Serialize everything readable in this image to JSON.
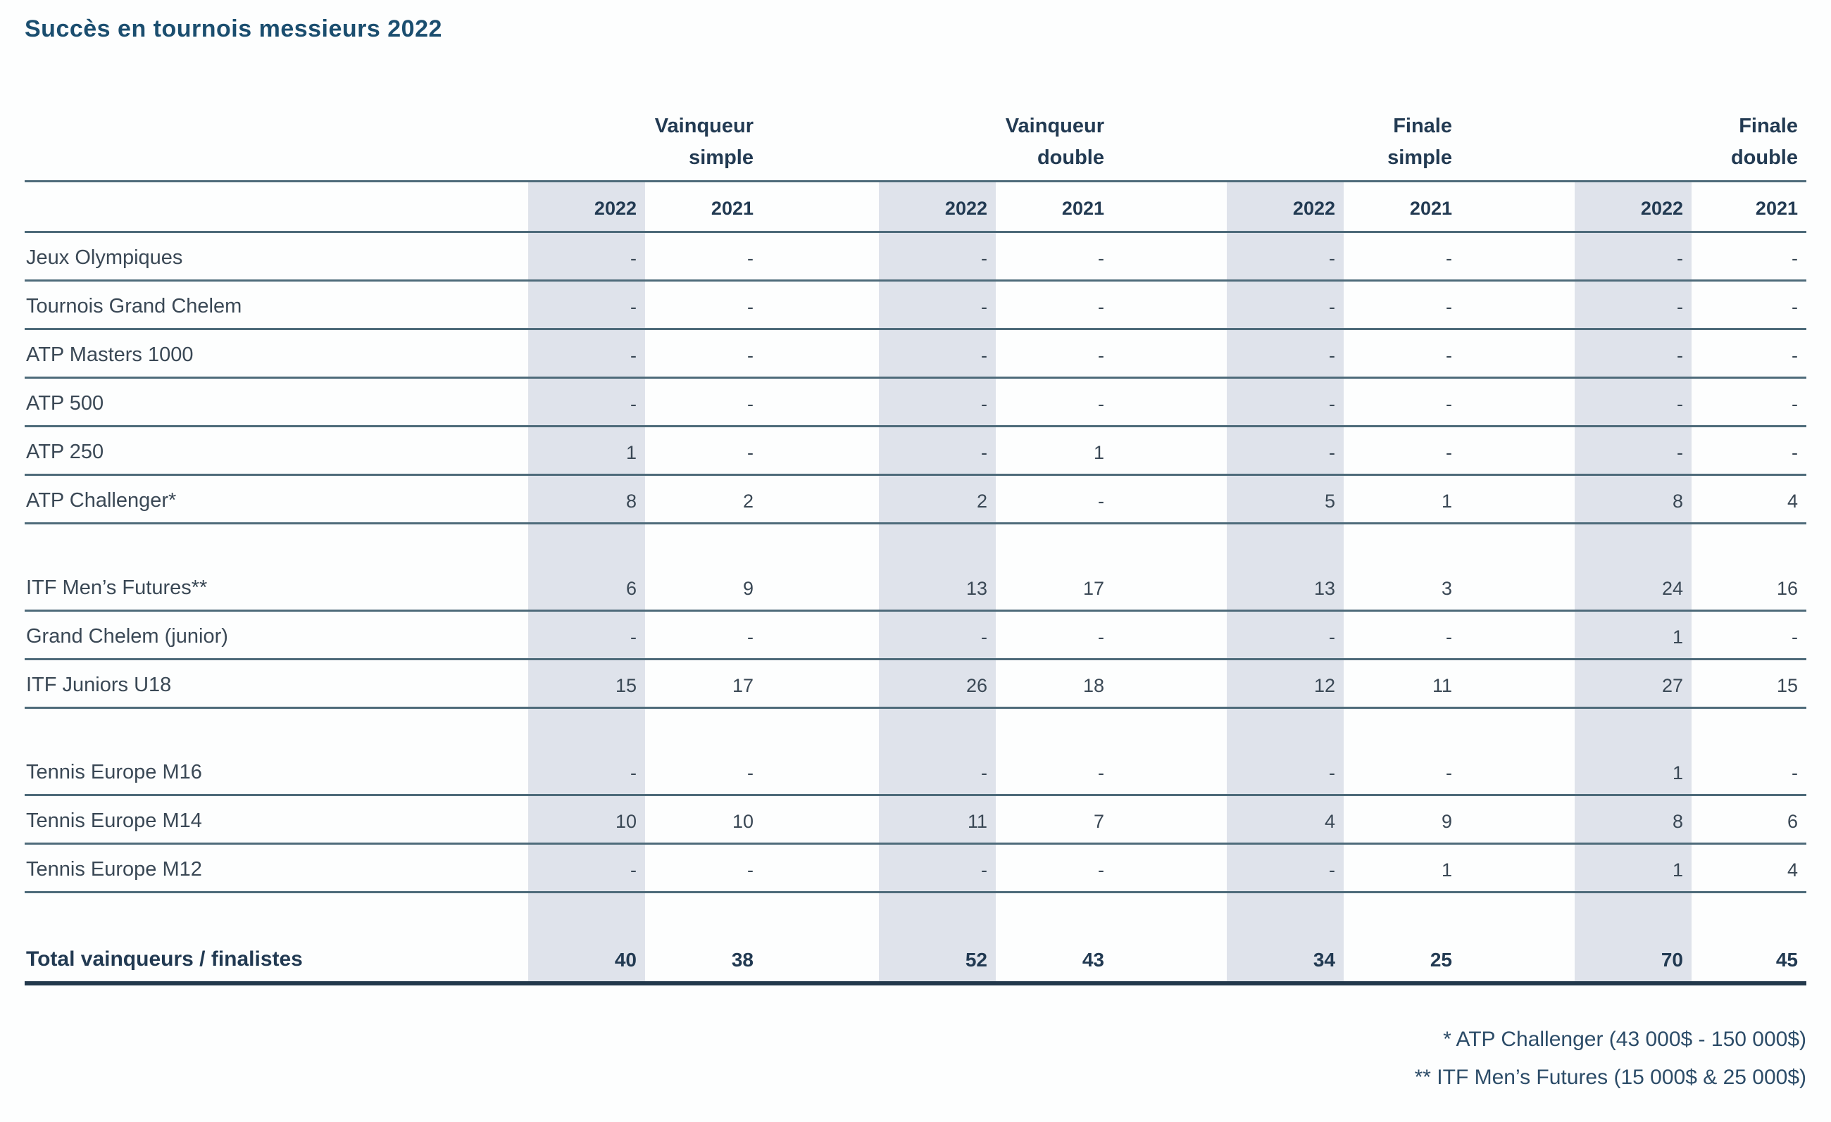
{
  "title": "Succès en tournois messieurs 2022",
  "table": {
    "groups": [
      {
        "label": "Vainqueur\nsimple"
      },
      {
        "label": "Vainqueur\ndouble"
      },
      {
        "label": "Finale\nsimple"
      },
      {
        "label": "Finale\ndouble"
      }
    ],
    "year_headers": [
      "2022",
      "2021",
      "2022",
      "2021",
      "2022",
      "2021",
      "2022",
      "2021"
    ],
    "rows": [
      {
        "type": "data",
        "label": "Jeux Olympiques",
        "values": [
          "-",
          "-",
          "-",
          "-",
          "-",
          "-",
          "-",
          "-"
        ]
      },
      {
        "type": "data",
        "label": "Tournois Grand Chelem",
        "values": [
          "-",
          "-",
          "-",
          "-",
          "-",
          "-",
          "-",
          "-"
        ]
      },
      {
        "type": "data",
        "label": "ATP Masters 1000",
        "values": [
          "-",
          "-",
          "-",
          "-",
          "-",
          "-",
          "-",
          "-"
        ]
      },
      {
        "type": "data",
        "label": "ATP 500",
        "values": [
          "-",
          "-",
          "-",
          "-",
          "-",
          "-",
          "-",
          "-"
        ]
      },
      {
        "type": "data",
        "label": "ATP 250",
        "values": [
          "1",
          "-",
          "-",
          "1",
          "-",
          "-",
          "-",
          "-"
        ]
      },
      {
        "type": "data",
        "label": "ATP Challenger*",
        "values": [
          "8",
          "2",
          "2",
          "-",
          "5",
          "1",
          "8",
          "4"
        ]
      },
      {
        "type": "gap"
      },
      {
        "type": "data",
        "label": "ITF Men’s Futures**",
        "values": [
          "6",
          "9",
          "13",
          "17",
          "13",
          "3",
          "24",
          "16"
        ]
      },
      {
        "type": "data",
        "label": "Grand Chelem (junior)",
        "values": [
          "-",
          "-",
          "-",
          "-",
          "-",
          "-",
          "1",
          "-"
        ]
      },
      {
        "type": "data",
        "label": "ITF Juniors U18",
        "values": [
          "15",
          "17",
          "26",
          "18",
          "12",
          "11",
          "27",
          "15"
        ]
      },
      {
        "type": "gap"
      },
      {
        "type": "data",
        "label": "Tennis Europe M16",
        "values": [
          "-",
          "-",
          "-",
          "-",
          "-",
          "-",
          "1",
          "-"
        ]
      },
      {
        "type": "data",
        "label": "Tennis Europe M14",
        "values": [
          "10",
          "10",
          "11",
          "7",
          "4",
          "9",
          "8",
          "6"
        ]
      },
      {
        "type": "data",
        "label": "Tennis Europe M12",
        "values": [
          "-",
          "-",
          "-",
          "-",
          "-",
          "1",
          "1",
          "4"
        ]
      },
      {
        "type": "gap"
      },
      {
        "type": "total",
        "label": "Total vainqueurs / finalistes",
        "values": [
          "40",
          "38",
          "52",
          "43",
          "34",
          "25",
          "70",
          "45"
        ]
      }
    ]
  },
  "footnotes": [
    "* ATP Challenger (43 000$ - 150 000$)",
    "** ITF Men’s Futures (15 000$ & 25 000$)"
  ],
  "colors": {
    "title": "#1b4e6f",
    "header_text": "#223a52",
    "body_text": "#3a4855",
    "rule": "#4e6b7a",
    "total_rule": "#22384b",
    "column_shade": "#dfe3eb"
  }
}
